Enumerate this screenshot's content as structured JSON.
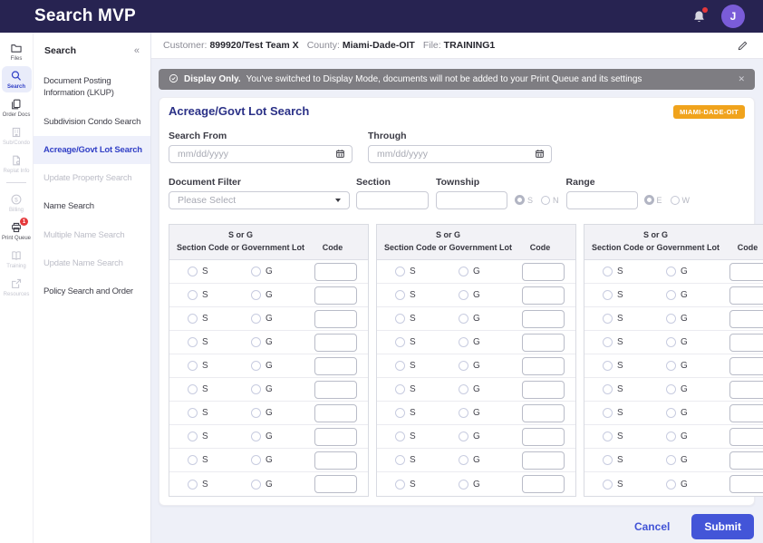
{
  "header": {
    "title": "Search MVP",
    "avatar_initial": "J"
  },
  "rail": {
    "items": [
      {
        "label": "Files",
        "icon": "folder",
        "state": "enabled"
      },
      {
        "label": "Search",
        "icon": "search",
        "state": "active"
      },
      {
        "label": "Order Docs",
        "icon": "copy",
        "state": "enabled"
      },
      {
        "label": "Sub/Condo",
        "icon": "building",
        "state": "disabled"
      },
      {
        "label": "Replat Info",
        "icon": "file-gear",
        "state": "disabled"
      },
      {
        "label": "Billing",
        "icon": "dollar-circle",
        "state": "disabled"
      },
      {
        "label": "Print Queue",
        "icon": "printer",
        "state": "enabled",
        "badge": "1"
      },
      {
        "label": "Training",
        "icon": "book",
        "state": "disabled"
      },
      {
        "label": "Resources",
        "icon": "external-link",
        "state": "disabled"
      }
    ]
  },
  "sidebar": {
    "title": "Search",
    "collapse_icon": "«",
    "items": [
      {
        "label": "Document Posting Information (LKUP)",
        "state": "enabled"
      },
      {
        "label": "Subdivision Condo Search",
        "state": "enabled"
      },
      {
        "label": "Acreage/Govt Lot Search",
        "state": "active"
      },
      {
        "label": "Update Property Search",
        "state": "disabled"
      },
      {
        "label": "Name Search",
        "state": "enabled"
      },
      {
        "label": "Multiple Name Search",
        "state": "disabled"
      },
      {
        "label": "Update Name Search",
        "state": "disabled"
      },
      {
        "label": "Policy Search and Order",
        "state": "enabled"
      }
    ]
  },
  "context_bar": {
    "customer_label": "Customer:",
    "customer_value": "899920/Test Team X",
    "county_label": "County:",
    "county_value": "Miami-Dade-OIT",
    "file_label": "File:",
    "file_value": "TRAINING1"
  },
  "banner": {
    "bold": "Display Only.",
    "text": "You've switched to Display Mode, documents will not be added to your Print Queue and its settings",
    "close": "✕"
  },
  "form": {
    "title": "Acreage/Govt Lot Search",
    "county_badge": "MIAMI-DADE-OIT",
    "search_from_label": "Search From",
    "through_label": "Through",
    "date_placeholder": "mm/dd/yyyy",
    "document_filter_label": "Document Filter",
    "document_filter_value": "Please Select",
    "section_label": "Section",
    "township_label": "Township",
    "township_options": [
      {
        "label": "S",
        "selected": true
      },
      {
        "label": "N",
        "selected": false
      }
    ],
    "range_options": [
      {
        "label": "E",
        "selected": true
      },
      {
        "label": "W",
        "selected": false
      }
    ],
    "range_label": "Range",
    "table": {
      "header_line1": "S or G",
      "header_line2": "Section Code or Government Lot",
      "code_header": "Code",
      "radio_s": "S",
      "radio_g": "G",
      "columns": 3,
      "rows_per_column": 10
    }
  },
  "footer": {
    "cancel_label": "Cancel",
    "submit_label": "Submit"
  },
  "colors": {
    "header_navy": "#272351",
    "accent_blue": "#4355d8",
    "badge_orange": "#f0a31c",
    "banner_gray": "#7e7d82",
    "avatar_purple": "#7a5cd8",
    "alert_red": "#e5383b"
  }
}
